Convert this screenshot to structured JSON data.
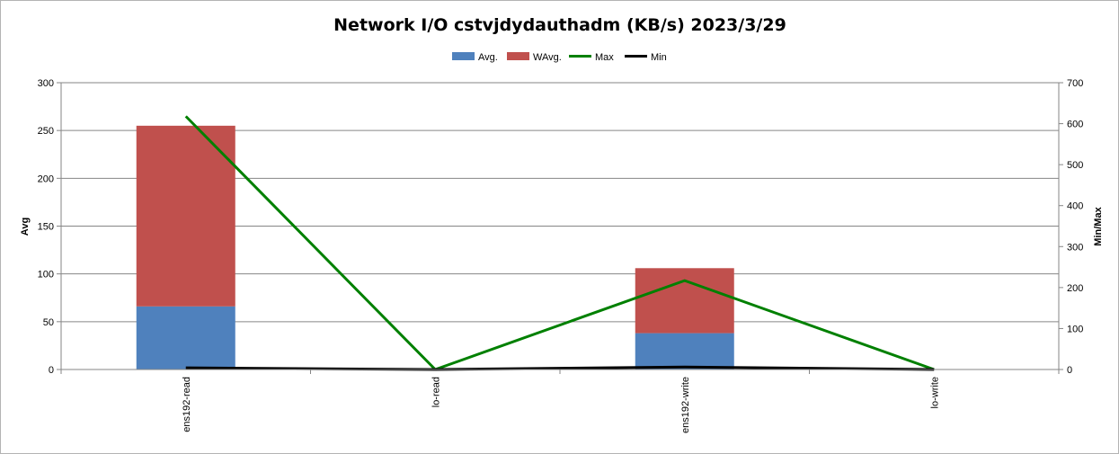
{
  "chart_data": {
    "type": "bar",
    "title": "Network I/O cstvjdydauthadm (KB/s)  2023/3/29",
    "categories": [
      "ens192-read",
      "lo-read",
      "ens192-write",
      "lo-write"
    ],
    "stacked": true,
    "series": [
      {
        "name": "Avg.",
        "type": "bar",
        "axis": "left",
        "color": "#4f81bd",
        "values": [
          66,
          0,
          38,
          0
        ]
      },
      {
        "name": "WAvg.",
        "type": "bar",
        "axis": "left",
        "color": "#c0504d",
        "values": [
          189,
          0,
          68,
          0
        ]
      },
      {
        "name": "Max",
        "type": "line",
        "axis": "right",
        "color": "#008000",
        "values": [
          618,
          0,
          217,
          0
        ]
      },
      {
        "name": "Min",
        "type": "line",
        "axis": "right",
        "color": "#000000",
        "values": [
          4,
          0,
          6,
          0
        ]
      }
    ],
    "ylabel": "Avg",
    "ylabel_right": "Min/Max",
    "ylim": [
      0,
      300
    ],
    "ylim_right": [
      0,
      700
    ],
    "yticks": [
      0,
      50,
      100,
      150,
      200,
      250,
      300
    ],
    "yticks_right": [
      0,
      100,
      200,
      300,
      400,
      500,
      600,
      700
    ],
    "grid": true,
    "legend_position": "top"
  }
}
